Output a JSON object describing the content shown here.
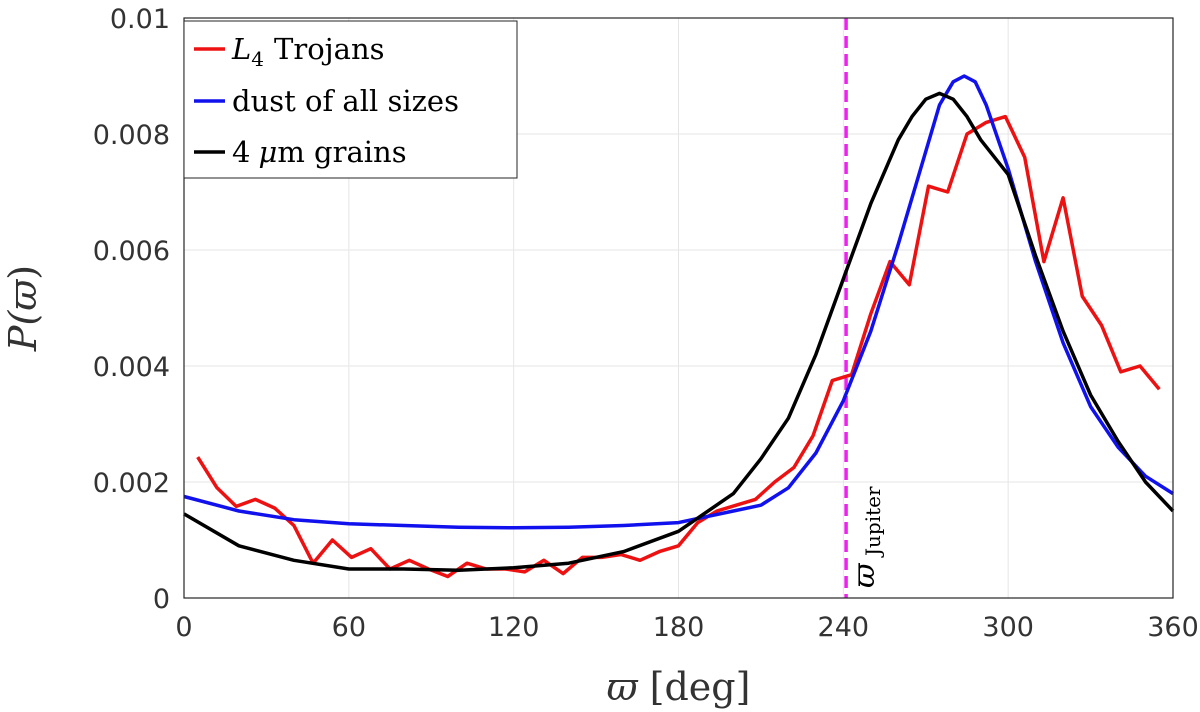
{
  "chart_data": {
    "type": "line",
    "xlabel_symbol": "ϖ",
    "xlabel_unit": "[deg]",
    "ylabel_prefix": "P(",
    "ylabel_symbol": "ϖ",
    "ylabel_suffix": ")",
    "xlim": [
      0,
      360
    ],
    "ylim": [
      0,
      0.01
    ],
    "xticks": [
      0,
      60,
      120,
      180,
      240,
      300,
      360
    ],
    "yticks": [
      0,
      0.002,
      0.004,
      0.006,
      0.008,
      0.01
    ],
    "ytick_labels": [
      "0",
      "0.002",
      "0.004",
      "0.006",
      "0.008",
      "0.01"
    ],
    "grid": true,
    "legend_position": "top-left",
    "series": [
      {
        "name": "L4 Trojans",
        "legend_main": "L",
        "legend_sub": "4",
        "legend_rest": "Trojans",
        "color": "#ee1111",
        "x": [
          5,
          12,
          19,
          26,
          33,
          40,
          47,
          54,
          61,
          68,
          75,
          82,
          89,
          96,
          103,
          110,
          117,
          124,
          131,
          138,
          145,
          152,
          159,
          166,
          173,
          180,
          187,
          194,
          201,
          208,
          215,
          222,
          229,
          236,
          243,
          250,
          257,
          264,
          271,
          278,
          285,
          292,
          299,
          306,
          313,
          320,
          327,
          334,
          341,
          348,
          355
        ],
        "y": [
          0.00243,
          0.0019,
          0.00158,
          0.0017,
          0.00155,
          0.00125,
          0.0006,
          0.001,
          0.0007,
          0.00085,
          0.0005,
          0.00065,
          0.0005,
          0.00037,
          0.0006,
          0.0005,
          0.0005,
          0.00045,
          0.00065,
          0.00042,
          0.0007,
          0.0007,
          0.00075,
          0.00065,
          0.0008,
          0.0009,
          0.0013,
          0.0015,
          0.0016,
          0.0017,
          0.002,
          0.00225,
          0.0028,
          0.00375,
          0.00385,
          0.0049,
          0.0058,
          0.0054,
          0.0071,
          0.007,
          0.008,
          0.0082,
          0.0083,
          0.0076,
          0.0058,
          0.0069,
          0.0052,
          0.0047,
          0.0039,
          0.004,
          0.0036
        ]
      },
      {
        "name": "dust of all sizes",
        "color": "#1111ee",
        "x": [
          0,
          20,
          40,
          60,
          80,
          100,
          120,
          140,
          160,
          180,
          200,
          210,
          220,
          230,
          240,
          250,
          260,
          270,
          275,
          280,
          284,
          288,
          292,
          300,
          310,
          320,
          330,
          340,
          350,
          360
        ],
        "y": [
          0.00175,
          0.0015,
          0.00135,
          0.00128,
          0.00125,
          0.00122,
          0.00121,
          0.00122,
          0.00125,
          0.0013,
          0.0015,
          0.0016,
          0.0019,
          0.0025,
          0.0034,
          0.0046,
          0.0061,
          0.0077,
          0.0085,
          0.0089,
          0.009,
          0.0089,
          0.0085,
          0.0074,
          0.0058,
          0.0044,
          0.0033,
          0.0026,
          0.0021,
          0.0018
        ]
      },
      {
        "name": "4 μm grains",
        "legend_num": "4",
        "legend_mu": "μ",
        "legend_rest": "m grains",
        "color": "#000000",
        "x": [
          0,
          20,
          40,
          60,
          80,
          100,
          120,
          140,
          160,
          180,
          200,
          210,
          220,
          230,
          240,
          250,
          260,
          265,
          270,
          275,
          280,
          285,
          290,
          300,
          310,
          320,
          330,
          340,
          350,
          360
        ],
        "y": [
          0.00145,
          0.0009,
          0.00065,
          0.0005,
          0.0005,
          0.00048,
          0.00052,
          0.0006,
          0.0008,
          0.00115,
          0.0018,
          0.0024,
          0.0031,
          0.0042,
          0.0055,
          0.0068,
          0.0079,
          0.0083,
          0.0086,
          0.0087,
          0.0086,
          0.0083,
          0.0079,
          0.0073,
          0.0059,
          0.0046,
          0.0035,
          0.0027,
          0.002,
          0.0015
        ]
      }
    ],
    "reference_line": {
      "x": 241,
      "color": "#ee22ee",
      "label_symbol": "ϖ",
      "label_sub": "Jupiter"
    }
  }
}
